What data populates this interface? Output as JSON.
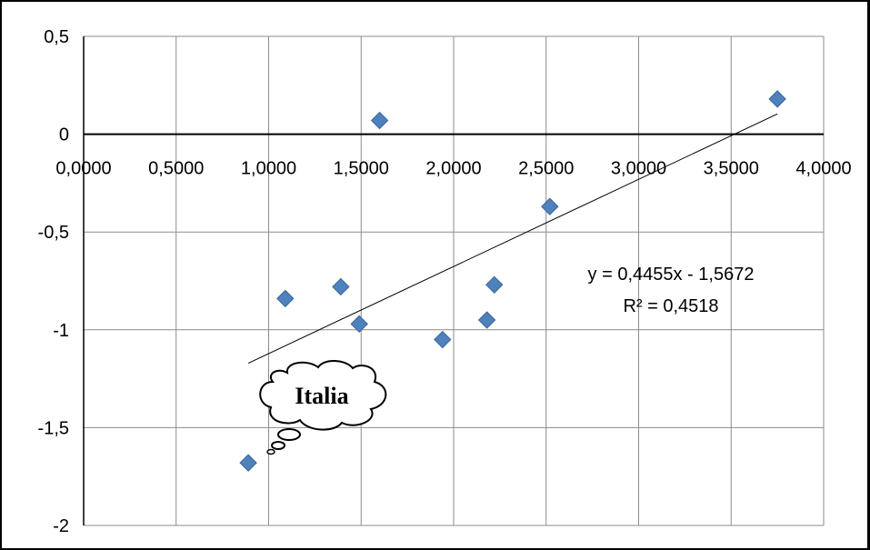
{
  "chart_data": {
    "type": "scatter",
    "title": "",
    "xlabel": "",
    "ylabel": "",
    "xlim": [
      0,
      4
    ],
    "ylim": [
      -2,
      0.5
    ],
    "x_ticks": [
      "0,0000",
      "0,5000",
      "1,0000",
      "1,5000",
      "2,0000",
      "2,5000",
      "3,0000",
      "3,5000",
      "4,0000"
    ],
    "y_ticks": [
      "0,5",
      "0",
      "-0,5",
      "-1",
      "-1,5",
      "-2"
    ],
    "x_tick_values": [
      0,
      0.5,
      1,
      1.5,
      2,
      2.5,
      3,
      3.5,
      4
    ],
    "y_tick_values": [
      0.5,
      0,
      -0.5,
      -1,
      -1.5,
      -2
    ],
    "grid": true,
    "legend": "none",
    "marker_color": "#4F81BD",
    "series": [
      {
        "points": [
          {
            "x": 0.89,
            "y": -1.68
          },
          {
            "x": 1.09,
            "y": -0.84
          },
          {
            "x": 1.39,
            "y": -0.78
          },
          {
            "x": 1.49,
            "y": -0.97
          },
          {
            "x": 1.6,
            "y": 0.07
          },
          {
            "x": 1.94,
            "y": -1.05
          },
          {
            "x": 2.18,
            "y": -0.95
          },
          {
            "x": 2.22,
            "y": -0.77
          },
          {
            "x": 2.52,
            "y": -0.37
          },
          {
            "x": 3.75,
            "y": 0.18
          }
        ]
      }
    ],
    "trendline": {
      "type": "linear",
      "slope": 0.4455,
      "intercept": -1.5672,
      "x_range": [
        0.89,
        3.75
      ],
      "equation_label": "y = 0,4455x - 1,5672",
      "r2_label": "R² = 0,4518"
    },
    "annotations": [
      {
        "text": "Italia",
        "target_point_index": 0
      }
    ]
  }
}
